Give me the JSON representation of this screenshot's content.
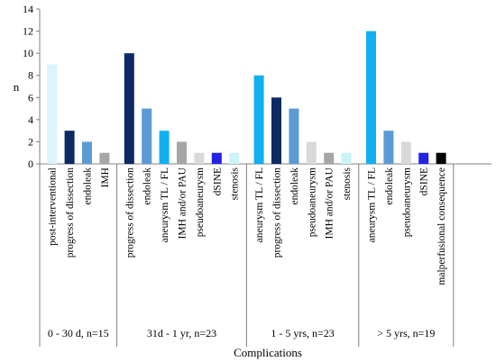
{
  "chart_data": {
    "type": "bar",
    "ylabel": "n",
    "xlabel": "Complications",
    "ylim": [
      0,
      14
    ],
    "y_ticks": [
      0,
      2,
      4,
      6,
      8,
      10,
      12,
      14
    ],
    "grid": false,
    "legend": "none",
    "groups": [
      {
        "label": "0 - 30 d, n=15",
        "bars": [
          {
            "category": "post-interventional",
            "value": 9,
            "color": "#DDF3FD"
          },
          {
            "category": "progress of dissection",
            "value": 3,
            "color": "#0E2A63"
          },
          {
            "category": "endoleak",
            "value": 2,
            "color": "#5B9BD5"
          },
          {
            "category": "IMH",
            "value": 1,
            "color": "#A6A6A6"
          }
        ]
      },
      {
        "label": "31d - 1 yr, n=23",
        "bars": [
          {
            "category": "progress of dissection",
            "value": 10,
            "color": "#0E2A63"
          },
          {
            "category": "endoleak",
            "value": 5,
            "color": "#5B9BD5"
          },
          {
            "category": "aneurysm TL / FL",
            "value": 3,
            "color": "#12B0F0"
          },
          {
            "category": "IMH and/or PAU",
            "value": 2,
            "color": "#A6A6A6"
          },
          {
            "category": "pseudoaneurysm",
            "value": 1,
            "color": "#D9D9D9"
          },
          {
            "category": "dSINE",
            "value": 1,
            "color": "#2323E6"
          },
          {
            "category": "stenosis",
            "value": 1,
            "color": "#CCF4F8"
          }
        ]
      },
      {
        "label": "1 - 5 yrs, n=23",
        "bars": [
          {
            "category": "aneurysm TL / FL",
            "value": 8,
            "color": "#12B0F0"
          },
          {
            "category": "progress of dissection",
            "value": 6,
            "color": "#0E2A63"
          },
          {
            "category": "endoleak",
            "value": 5,
            "color": "#5B9BD5"
          },
          {
            "category": "pseudoaneurysm",
            "value": 2,
            "color": "#D9D9D9"
          },
          {
            "category": "IMH and/or PAU",
            "value": 1,
            "color": "#A6A6A6"
          },
          {
            "category": "stenosis",
            "value": 1,
            "color": "#CCF4F8"
          }
        ]
      },
      {
        "label": "> 5 yrs, n=19",
        "bars": [
          {
            "category": "aneurysm TL / FL",
            "value": 12,
            "color": "#12B0F0"
          },
          {
            "category": "endoleak",
            "value": 3,
            "color": "#5B9BD5"
          },
          {
            "category": "pseudoaneurysm",
            "value": 2,
            "color": "#D9D9D9"
          },
          {
            "category": "dSINE",
            "value": 1,
            "color": "#2323E6"
          },
          {
            "category": "malperfusional consequence",
            "value": 1,
            "color": "#000000"
          }
        ]
      }
    ]
  }
}
